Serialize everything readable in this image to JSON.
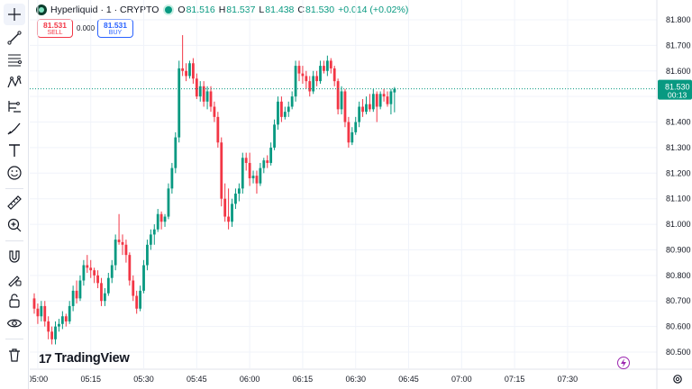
{
  "header": {
    "symbol": "Hyperliquid · 1 · CRYPTO",
    "open_label": "O",
    "open_value": "81.516",
    "high_label": "H",
    "high_value": "81.537",
    "low_label": "L",
    "low_value": "81.438",
    "close_label": "C",
    "close_value": "81.530",
    "change": "+0.014 (+0.02%)"
  },
  "trade": {
    "sell_price": "81.531",
    "sell_label": "SELL",
    "spread": "0.000",
    "buy_price": "81.531",
    "buy_label": "BUY"
  },
  "price_axis": {
    "labels": [
      "81.800",
      "81.700",
      "81.600",
      "81.500",
      "81.400",
      "81.300",
      "81.200",
      "81.100",
      "81.000",
      "80.900",
      "80.800",
      "80.700",
      "80.600",
      "80.500"
    ],
    "current_price": "81.530",
    "countdown": "00:13"
  },
  "time_axis": {
    "labels": [
      "05:00",
      "05:15",
      "05:30",
      "05:45",
      "06:00",
      "06:15",
      "06:30",
      "06:45",
      "07:00",
      "07:15",
      "07:30"
    ]
  },
  "branding": {
    "logo_mark": "17",
    "logo_text": "TradingView"
  },
  "colors": {
    "up": "#089981",
    "down": "#f23645",
    "sell": "#f23645",
    "buy": "#2962ff",
    "price_line": "#089981"
  },
  "toolbar": {
    "icons": [
      "crosshair-icon",
      "trend-line-icon",
      "fib-retracement-icon",
      "pattern-icon",
      "forecast-icon",
      "brush-icon",
      "text-icon",
      "emoji-icon",
      "ruler-icon",
      "zoom-in-icon",
      "magnet-icon",
      "lock-drawings-icon",
      "lock-icon",
      "eye-icon",
      "trash-icon"
    ]
  },
  "chart_data": {
    "type": "candlestick",
    "symbol": "Hyperliquid · 1 · CRYPTO",
    "ylim": [
      80.5,
      81.8
    ],
    "x_start": "04:59",
    "interval_minutes": 1,
    "candles": [
      [
        80.71,
        80.73,
        80.65,
        80.67
      ],
      [
        80.67,
        80.69,
        80.61,
        80.64
      ],
      [
        80.64,
        80.7,
        80.62,
        80.68
      ],
      [
        80.68,
        80.7,
        80.6,
        80.62
      ],
      [
        80.62,
        80.64,
        80.55,
        80.58
      ],
      [
        80.58,
        80.6,
        80.53,
        80.55
      ],
      [
        80.55,
        80.62,
        80.53,
        80.6
      ],
      [
        80.6,
        80.63,
        80.58,
        80.61
      ],
      [
        80.61,
        80.66,
        80.59,
        80.64
      ],
      [
        80.64,
        80.65,
        80.6,
        80.62
      ],
      [
        80.62,
        80.7,
        80.61,
        80.68
      ],
      [
        80.68,
        80.76,
        80.66,
        80.74
      ],
      [
        80.74,
        80.78,
        80.69,
        80.71
      ],
      [
        80.71,
        80.8,
        80.7,
        80.78
      ],
      [
        80.78,
        80.86,
        80.76,
        80.84
      ],
      [
        80.84,
        80.88,
        80.81,
        80.83
      ],
      [
        80.83,
        80.86,
        80.79,
        80.82
      ],
      [
        80.82,
        80.83,
        80.77,
        80.8
      ],
      [
        80.8,
        80.82,
        80.75,
        80.77
      ],
      [
        80.77,
        80.79,
        80.68,
        80.7
      ],
      [
        80.7,
        80.75,
        80.68,
        80.73
      ],
      [
        80.73,
        80.81,
        80.72,
        80.79
      ],
      [
        80.79,
        80.86,
        80.77,
        80.84
      ],
      [
        80.84,
        80.96,
        80.82,
        80.94
      ],
      [
        80.94,
        81.04,
        80.92,
        80.93
      ],
      [
        80.93,
        80.96,
        80.88,
        80.92
      ],
      [
        80.92,
        80.94,
        80.85,
        80.88
      ],
      [
        80.88,
        80.89,
        80.76,
        80.78
      ],
      [
        80.78,
        80.8,
        80.7,
        80.72
      ],
      [
        80.72,
        80.74,
        80.65,
        80.67
      ],
      [
        80.67,
        80.76,
        80.66,
        80.74
      ],
      [
        80.74,
        80.86,
        80.73,
        80.84
      ],
      [
        80.84,
        80.94,
        80.82,
        80.92
      ],
      [
        80.92,
        80.98,
        80.9,
        80.96
      ],
      [
        80.96,
        81.0,
        80.92,
        80.98
      ],
      [
        80.98,
        81.06,
        80.97,
        81.04
      ],
      [
        81.04,
        81.05,
        80.98,
        81.01
      ],
      [
        81.01,
        81.04,
        80.99,
        81.03
      ],
      [
        81.03,
        81.16,
        81.02,
        81.14
      ],
      [
        81.14,
        81.24,
        81.12,
        81.22
      ],
      [
        81.22,
        81.36,
        81.2,
        81.34
      ],
      [
        81.34,
        81.64,
        81.32,
        81.61
      ],
      [
        81.61,
        81.74,
        81.58,
        81.6
      ],
      [
        81.6,
        81.63,
        81.56,
        81.58
      ],
      [
        81.58,
        81.64,
        81.57,
        81.63
      ],
      [
        81.63,
        81.65,
        81.55,
        81.57
      ],
      [
        81.57,
        81.59,
        81.49,
        81.5
      ],
      [
        81.5,
        81.56,
        81.48,
        81.54
      ],
      [
        81.54,
        81.56,
        81.46,
        81.48
      ],
      [
        81.48,
        81.54,
        81.45,
        81.52
      ],
      [
        81.52,
        81.54,
        81.44,
        81.46
      ],
      [
        81.46,
        81.48,
        81.4,
        81.42
      ],
      [
        81.42,
        81.44,
        81.3,
        81.32
      ],
      [
        81.32,
        81.34,
        81.07,
        81.1
      ],
      [
        81.1,
        81.16,
        81.01,
        81.03
      ],
      [
        81.03,
        81.14,
        80.98,
        81.01
      ],
      [
        81.01,
        81.1,
        80.99,
        81.08
      ],
      [
        81.08,
        81.14,
        81.06,
        81.12
      ],
      [
        81.12,
        81.16,
        81.09,
        81.14
      ],
      [
        81.14,
        81.28,
        81.12,
        81.26
      ],
      [
        81.26,
        81.28,
        81.21,
        81.24
      ],
      [
        81.24,
        81.28,
        81.15,
        81.18
      ],
      [
        81.18,
        81.21,
        81.16,
        81.19
      ],
      [
        81.19,
        81.21,
        81.12,
        81.16
      ],
      [
        81.16,
        81.24,
        81.15,
        81.22
      ],
      [
        81.22,
        81.26,
        81.2,
        81.25
      ],
      [
        81.25,
        81.27,
        81.22,
        81.24
      ],
      [
        81.24,
        81.32,
        81.23,
        81.3
      ],
      [
        81.3,
        81.41,
        81.29,
        81.39
      ],
      [
        81.39,
        81.5,
        81.37,
        81.48
      ],
      [
        81.48,
        81.5,
        81.4,
        81.42
      ],
      [
        81.42,
        81.46,
        81.41,
        81.44
      ],
      [
        81.44,
        81.48,
        81.42,
        81.46
      ],
      [
        81.46,
        81.52,
        81.45,
        81.5
      ],
      [
        81.5,
        81.64,
        81.48,
        81.62
      ],
      [
        81.62,
        81.64,
        81.56,
        81.59
      ],
      [
        81.59,
        81.62,
        81.55,
        81.58
      ],
      [
        81.58,
        81.6,
        81.53,
        81.56
      ],
      [
        81.56,
        81.58,
        81.5,
        81.52
      ],
      [
        81.52,
        81.6,
        81.51,
        81.58
      ],
      [
        81.58,
        81.6,
        81.54,
        81.56
      ],
      [
        81.56,
        81.64,
        81.55,
        81.62
      ],
      [
        81.62,
        81.64,
        81.59,
        81.6
      ],
      [
        81.6,
        81.66,
        81.58,
        81.64
      ],
      [
        81.64,
        81.65,
        81.59,
        81.61
      ],
      [
        81.61,
        81.62,
        81.54,
        81.56
      ],
      [
        81.56,
        81.57,
        81.43,
        81.45
      ],
      [
        81.45,
        81.54,
        81.43,
        81.52
      ],
      [
        81.52,
        81.53,
        81.38,
        81.4
      ],
      [
        81.4,
        81.42,
        81.3,
        81.32
      ],
      [
        81.32,
        81.38,
        81.31,
        81.36
      ],
      [
        81.36,
        81.42,
        81.35,
        81.4
      ],
      [
        81.4,
        81.48,
        81.38,
        81.46
      ],
      [
        81.46,
        81.49,
        81.42,
        81.44
      ],
      [
        81.44,
        81.5,
        81.43,
        81.47
      ],
      [
        81.47,
        81.51,
        81.44,
        81.45
      ],
      [
        81.45,
        81.53,
        81.44,
        81.51
      ],
      [
        81.51,
        81.52,
        81.4,
        81.46
      ],
      [
        81.46,
        81.52,
        81.45,
        81.51
      ],
      [
        81.51,
        81.53,
        81.48,
        81.5
      ],
      [
        81.5,
        81.52,
        81.46,
        81.47
      ],
      [
        81.47,
        81.53,
        81.43,
        81.52
      ],
      [
        81.516,
        81.537,
        81.438,
        81.53
      ]
    ],
    "current_price": 81.53
  }
}
